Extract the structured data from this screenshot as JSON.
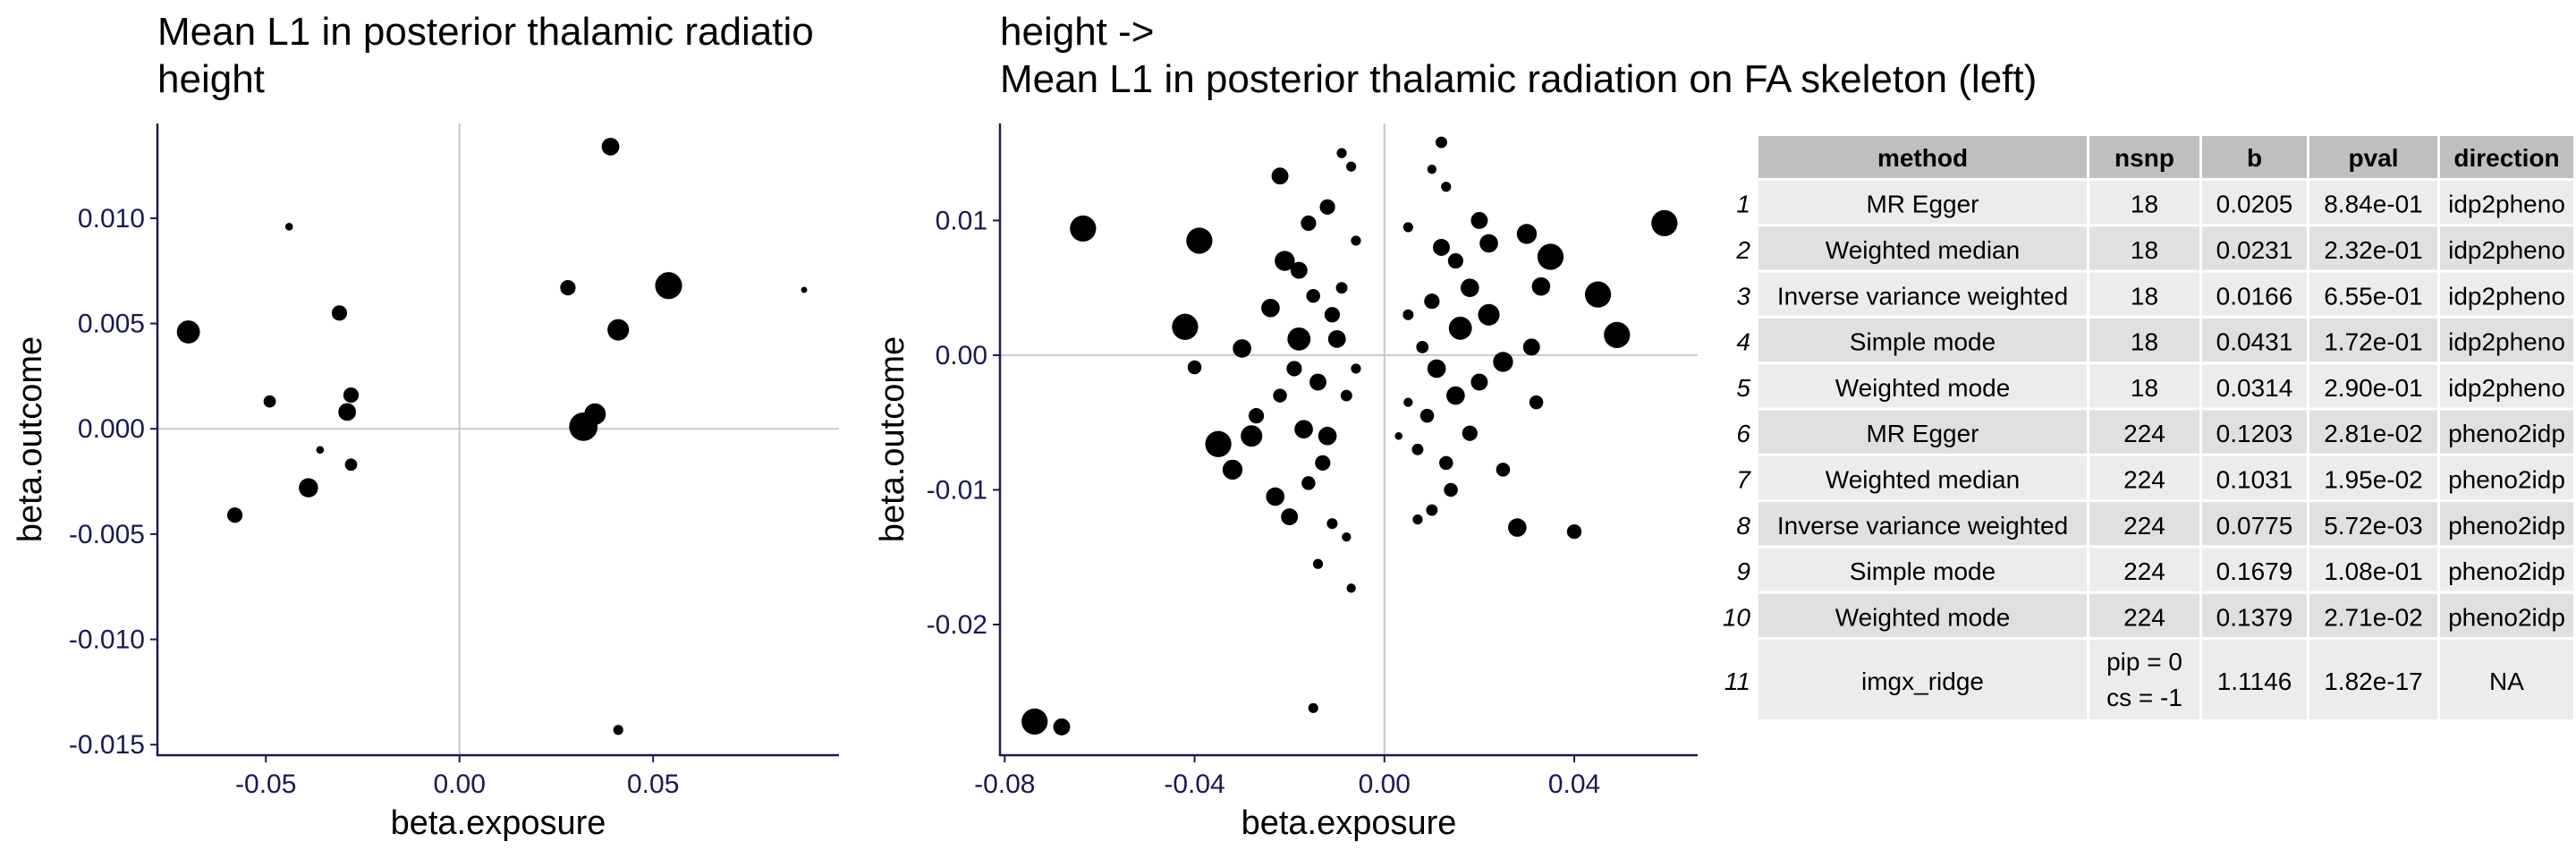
{
  "chart_data": [
    {
      "type": "scatter",
      "title_lines": [
        "Mean L1 in posterior thalamic radiatio",
        " height"
      ],
      "xlabel": "beta.exposure",
      "ylabel": "beta.outcome",
      "xlim": [
        -0.078,
        0.098
      ],
      "ylim": [
        -0.0155,
        0.0145
      ],
      "xticks": [
        -0.05,
        0.0,
        0.05
      ],
      "xtick_labels": [
        "-0.05",
        "0.00",
        "0.05"
      ],
      "yticks": [
        -0.015,
        -0.01,
        -0.005,
        0.0,
        0.005,
        0.01
      ],
      "ytick_labels": [
        "-0.015",
        "-0.010",
        "-0.005",
        "0.000",
        "0.005",
        "0.010"
      ],
      "points": [
        {
          "x": -0.07,
          "y": 0.0046,
          "s": 3
        },
        {
          "x": -0.044,
          "y": 0.0096,
          "s": 1
        },
        {
          "x": -0.031,
          "y": 0.0055,
          "s": 2
        },
        {
          "x": -0.049,
          "y": 0.0013,
          "s": 1.6
        },
        {
          "x": -0.028,
          "y": 0.0016,
          "s": 2
        },
        {
          "x": -0.029,
          "y": 0.0008,
          "s": 2.3
        },
        {
          "x": -0.036,
          "y": -0.001,
          "s": 1
        },
        {
          "x": -0.028,
          "y": -0.0017,
          "s": 1.6
        },
        {
          "x": -0.058,
          "y": -0.0041,
          "s": 2
        },
        {
          "x": -0.039,
          "y": -0.0028,
          "s": 2.5
        },
        {
          "x": 0.039,
          "y": 0.0134,
          "s": 2.3
        },
        {
          "x": 0.028,
          "y": 0.0067,
          "s": 2
        },
        {
          "x": 0.054,
          "y": 0.0068,
          "s": 3.5
        },
        {
          "x": 0.089,
          "y": 0.0066,
          "s": 0.8
        },
        {
          "x": 0.041,
          "y": 0.0047,
          "s": 2.8
        },
        {
          "x": 0.035,
          "y": 0.0007,
          "s": 2.8
        },
        {
          "x": 0.032,
          "y": 0.0001,
          "s": 3.7
        },
        {
          "x": 0.041,
          "y": -0.0143,
          "s": 1.3
        }
      ]
    },
    {
      "type": "scatter",
      "title_lines": [
        "height ->",
        " Mean L1 in posterior thalamic radiation on FA skeleton (left)"
      ],
      "xlabel": "beta.exposure",
      "ylabel": "beta.outcome",
      "xlim": [
        -0.081,
        0.066
      ],
      "ylim": [
        -0.0297,
        0.0172
      ],
      "xticks": [
        -0.08,
        -0.04,
        0.0,
        0.04
      ],
      "xtick_labels": [
        "-0.08",
        "-0.04",
        "0.00",
        "0.04"
      ],
      "yticks": [
        -0.02,
        -0.01,
        0.0,
        0.01
      ],
      "ytick_labels": [
        "-0.02",
        "-0.01",
        "0.00",
        "0.01"
      ],
      "points": [
        {
          "x": -0.0737,
          "y": -0.0272,
          "s": 3.4
        },
        {
          "x": -0.068,
          "y": -0.0276,
          "s": 2.2
        },
        {
          "x": -0.0635,
          "y": 0.0094,
          "s": 3.4
        },
        {
          "x": -0.039,
          "y": 0.0085,
          "s": 3.4
        },
        {
          "x": -0.042,
          "y": 0.0021,
          "s": 3.4
        },
        {
          "x": -0.04,
          "y": -0.0009,
          "s": 1.8
        },
        {
          "x": -0.035,
          "y": -0.0066,
          "s": 3.4
        },
        {
          "x": -0.032,
          "y": -0.0085,
          "s": 2.6
        },
        {
          "x": -0.028,
          "y": -0.006,
          "s": 2.8
        },
        {
          "x": -0.03,
          "y": 0.0005,
          "s": 2.4
        },
        {
          "x": -0.022,
          "y": 0.0133,
          "s": 2.2
        },
        {
          "x": -0.024,
          "y": 0.0035,
          "s": 2.4
        },
        {
          "x": -0.023,
          "y": -0.0105,
          "s": 2.4
        },
        {
          "x": -0.02,
          "y": -0.012,
          "s": 2.2
        },
        {
          "x": -0.027,
          "y": -0.0045,
          "s": 2.0
        },
        {
          "x": -0.021,
          "y": 0.007,
          "s": 2.6
        },
        {
          "x": -0.018,
          "y": 0.0063,
          "s": 2.2
        },
        {
          "x": -0.016,
          "y": 0.0098,
          "s": 2.0
        },
        {
          "x": -0.015,
          "y": 0.0044,
          "s": 1.8
        },
        {
          "x": -0.018,
          "y": 0.0012,
          "s": 3.0
        },
        {
          "x": -0.014,
          "y": -0.002,
          "s": 2.2
        },
        {
          "x": -0.017,
          "y": -0.0055,
          "s": 2.4
        },
        {
          "x": -0.013,
          "y": -0.008,
          "s": 2.0
        },
        {
          "x": -0.016,
          "y": -0.0095,
          "s": 1.8
        },
        {
          "x": -0.015,
          "y": -0.0262,
          "s": 1.3
        },
        {
          "x": -0.014,
          "y": -0.0155,
          "s": 1.3
        },
        {
          "x": -0.011,
          "y": -0.0125,
          "s": 1.4
        },
        {
          "x": -0.009,
          "y": 0.015,
          "s": 1.3
        },
        {
          "x": -0.007,
          "y": 0.014,
          "s": 1.3
        },
        {
          "x": -0.009,
          "y": 0.005,
          "s": 1.5
        },
        {
          "x": -0.01,
          "y": 0.0012,
          "s": 2.3
        },
        {
          "x": -0.008,
          "y": -0.003,
          "s": 1.5
        },
        {
          "x": -0.008,
          "y": -0.0135,
          "s": 1.2
        },
        {
          "x": -0.007,
          "y": -0.0173,
          "s": 1.2
        },
        {
          "x": -0.012,
          "y": 0.011,
          "s": 2.0
        },
        {
          "x": -0.006,
          "y": 0.0085,
          "s": 1.3
        },
        {
          "x": -0.006,
          "y": -0.001,
          "s": 1.3
        },
        {
          "x": -0.012,
          "y": -0.006,
          "s": 2.4
        },
        {
          "x": -0.022,
          "y": -0.003,
          "s": 1.8
        },
        {
          "x": -0.019,
          "y": -0.001,
          "s": 2.0
        },
        {
          "x": -0.011,
          "y": 0.003,
          "s": 2.0
        },
        {
          "x": 0.059,
          "y": 0.0098,
          "s": 3.4
        },
        {
          "x": 0.049,
          "y": 0.0015,
          "s": 3.4
        },
        {
          "x": 0.045,
          "y": 0.0045,
          "s": 3.4
        },
        {
          "x": 0.035,
          "y": 0.0073,
          "s": 3.4
        },
        {
          "x": 0.033,
          "y": 0.0051,
          "s": 2.4
        },
        {
          "x": 0.03,
          "y": 0.009,
          "s": 2.6
        },
        {
          "x": 0.031,
          "y": 0.0006,
          "s": 2.2
        },
        {
          "x": 0.032,
          "y": -0.0035,
          "s": 1.8
        },
        {
          "x": 0.04,
          "y": -0.0131,
          "s": 1.9
        },
        {
          "x": 0.028,
          "y": -0.0128,
          "s": 2.4
        },
        {
          "x": 0.025,
          "y": -0.0085,
          "s": 1.8
        },
        {
          "x": 0.025,
          "y": -0.0005,
          "s": 2.6
        },
        {
          "x": 0.022,
          "y": 0.003,
          "s": 2.8
        },
        {
          "x": 0.022,
          "y": 0.0083,
          "s": 2.4
        },
        {
          "x": 0.02,
          "y": 0.01,
          "s": 2.2
        },
        {
          "x": 0.018,
          "y": 0.005,
          "s": 2.4
        },
        {
          "x": 0.016,
          "y": 0.002,
          "s": 3.0
        },
        {
          "x": 0.015,
          "y": -0.003,
          "s": 2.4
        },
        {
          "x": 0.018,
          "y": -0.0058,
          "s": 2.0
        },
        {
          "x": 0.014,
          "y": -0.01,
          "s": 1.8
        },
        {
          "x": 0.012,
          "y": 0.0158,
          "s": 1.5
        },
        {
          "x": 0.013,
          "y": 0.0125,
          "s": 1.3
        },
        {
          "x": 0.01,
          "y": 0.0138,
          "s": 1.2
        },
        {
          "x": 0.012,
          "y": 0.008,
          "s": 2.2
        },
        {
          "x": 0.01,
          "y": 0.004,
          "s": 2.0
        },
        {
          "x": 0.008,
          "y": 0.0006,
          "s": 1.6
        },
        {
          "x": 0.011,
          "y": -0.001,
          "s": 2.4
        },
        {
          "x": 0.009,
          "y": -0.0045,
          "s": 1.8
        },
        {
          "x": 0.007,
          "y": -0.007,
          "s": 1.5
        },
        {
          "x": 0.01,
          "y": -0.0115,
          "s": 1.5
        },
        {
          "x": 0.007,
          "y": -0.0122,
          "s": 1.3
        },
        {
          "x": 0.005,
          "y": 0.0095,
          "s": 1.3
        },
        {
          "x": 0.005,
          "y": -0.0035,
          "s": 1.2
        },
        {
          "x": 0.003,
          "y": -0.006,
          "s": 1.0
        },
        {
          "x": 0.005,
          "y": 0.003,
          "s": 1.4
        },
        {
          "x": 0.015,
          "y": 0.007,
          "s": 2.0
        },
        {
          "x": 0.02,
          "y": -0.002,
          "s": 2.2
        },
        {
          "x": 0.013,
          "y": -0.008,
          "s": 1.8
        }
      ]
    },
    {
      "type": "table",
      "columns": [
        "method",
        "nsnp",
        "b",
        "pval",
        "direction"
      ],
      "rows": [
        {
          "id": "1",
          "method": "MR Egger",
          "nsnp": "18",
          "b": "0.0205",
          "pval": "8.84e-01",
          "direction": "idp2pheno"
        },
        {
          "id": "2",
          "method": "Weighted median",
          "nsnp": "18",
          "b": "0.0231",
          "pval": "2.32e-01",
          "direction": "idp2pheno"
        },
        {
          "id": "3",
          "method": "Inverse variance weighted",
          "nsnp": "18",
          "b": "0.0166",
          "pval": "6.55e-01",
          "direction": "idp2pheno"
        },
        {
          "id": "4",
          "method": "Simple mode",
          "nsnp": "18",
          "b": "0.0431",
          "pval": "1.72e-01",
          "direction": "idp2pheno"
        },
        {
          "id": "5",
          "method": "Weighted mode",
          "nsnp": "18",
          "b": "0.0314",
          "pval": "2.90e-01",
          "direction": "idp2pheno"
        },
        {
          "id": "6",
          "method": "MR Egger",
          "nsnp": "224",
          "b": "0.1203",
          "pval": "2.81e-02",
          "direction": "pheno2idp"
        },
        {
          "id": "7",
          "method": "Weighted median",
          "nsnp": "224",
          "b": "0.1031",
          "pval": "1.95e-02",
          "direction": "pheno2idp"
        },
        {
          "id": "8",
          "method": "Inverse variance weighted",
          "nsnp": "224",
          "b": "0.0775",
          "pval": "5.72e-03",
          "direction": "pheno2idp"
        },
        {
          "id": "9",
          "method": "Simple mode",
          "nsnp": "224",
          "b": "0.1679",
          "pval": "1.08e-01",
          "direction": "pheno2idp"
        },
        {
          "id": "10",
          "method": "Weighted mode",
          "nsnp": "224",
          "b": "0.1379",
          "pval": "2.71e-02",
          "direction": "pheno2idp"
        },
        {
          "id": "11",
          "method": "imgx_ridge",
          "nsnp": [
            "pip = 0",
            "cs = -1"
          ],
          "b": "1.1146",
          "pval": "1.82e-17",
          "direction": "NA"
        }
      ]
    }
  ],
  "colors": {
    "point": "#000000",
    "axis": "#1a1a4e",
    "refline": "#c8c8c8",
    "table_header": "#bfbfbf",
    "table_row_dark": "#e0e0e0",
    "table_row_light": "#ececec"
  }
}
